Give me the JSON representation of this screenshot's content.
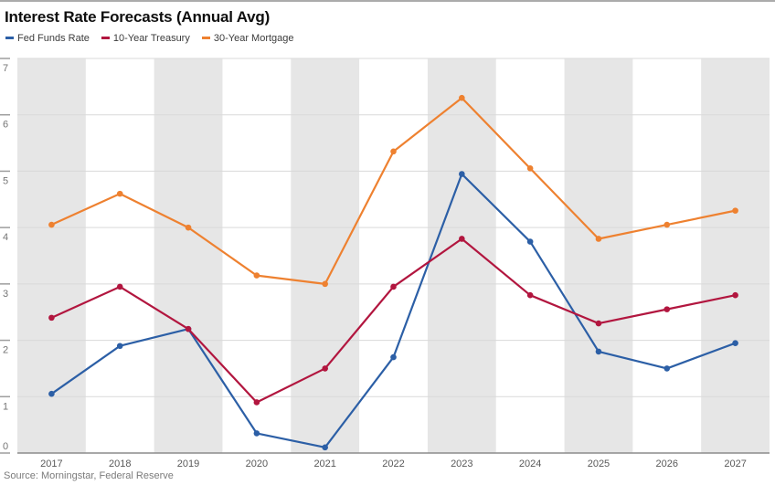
{
  "chart_data": {
    "type": "line",
    "title": "Interest Rate Forecasts (Annual Avg)",
    "x": [
      2017,
      2018,
      2019,
      2020,
      2021,
      2022,
      2023,
      2024,
      2025,
      2026,
      2027
    ],
    "series": [
      {
        "name": "Fed Funds Rate",
        "color": "#2c5fa6",
        "values": [
          1.05,
          1.9,
          2.2,
          0.35,
          0.1,
          1.7,
          4.95,
          3.75,
          1.8,
          1.5,
          1.95
        ]
      },
      {
        "name": "10-Year Treasury",
        "color": "#b2163f",
        "values": [
          2.4,
          2.95,
          2.2,
          0.9,
          1.5,
          2.95,
          3.8,
          2.8,
          2.3,
          2.55,
          2.8
        ]
      },
      {
        "name": "30-Year Mortgage",
        "color": "#ee8130",
        "values": [
          4.05,
          4.6,
          4.0,
          3.15,
          3.0,
          5.35,
          6.3,
          5.05,
          3.8,
          4.05,
          4.3
        ]
      }
    ],
    "ylim": [
      0,
      7
    ],
    "yticks": [
      0,
      1,
      2,
      3,
      4,
      5,
      6,
      7
    ],
    "xlabel": "",
    "ylabel": "",
    "grid": true,
    "legend_position": "top-left",
    "alternating_year_bands": true,
    "band_color": "#e6e6e6",
    "source": "Source: Morningstar, Federal Reserve"
  },
  "style": {
    "top_border": "#ababab",
    "gridline": "#d9d9d9",
    "axis_line": "#8c8c8c",
    "tick": "#9e9e9e",
    "y_label_color": "#757575",
    "x_label_color": "#595959"
  }
}
